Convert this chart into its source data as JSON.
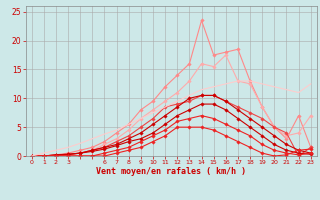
{
  "background_color": "#cde8e8",
  "grid_color": "#aaaaaa",
  "xlabel": "Vent moyen/en rafales ( km/h )",
  "xlim": [
    -0.5,
    23.5
  ],
  "ylim": [
    0,
    26
  ],
  "xtick_labels": [
    "0",
    "1",
    "2",
    "3",
    "",
    "",
    "6",
    "7",
    "8",
    "9",
    "10",
    "11",
    "12",
    "13",
    "14",
    "15",
    "16",
    "17",
    "18",
    "19",
    "20",
    "21",
    "22",
    "23"
  ],
  "yticks": [
    0,
    5,
    10,
    15,
    20,
    25
  ],
  "x": [
    0,
    1,
    2,
    3,
    4,
    5,
    6,
    7,
    8,
    9,
    10,
    11,
    12,
    13,
    14,
    15,
    16,
    17,
    18,
    19,
    20,
    21,
    22,
    23
  ],
  "lines": [
    {
      "color": "#ff8888",
      "lw": 0.8,
      "marker": "D",
      "ms": 1.8,
      "y": [
        0,
        0,
        0.2,
        0.5,
        1.0,
        1.5,
        2.5,
        4.0,
        5.5,
        8.0,
        9.5,
        12.0,
        14.0,
        16.0,
        23.5,
        17.5,
        18.0,
        18.5,
        13.0,
        8.5,
        5.0,
        3.0,
        7.0,
        1.5
      ]
    },
    {
      "color": "#ffaaaa",
      "lw": 0.8,
      "marker": "D",
      "ms": 1.8,
      "y": [
        0,
        0,
        0,
        0.3,
        0.5,
        1.0,
        2.0,
        3.0,
        4.5,
        6.5,
        8.0,
        9.5,
        11.0,
        13.0,
        16.0,
        15.5,
        17.5,
        13.0,
        12.5,
        8.5,
        5.0,
        3.5,
        4.0,
        7.0
      ]
    },
    {
      "color": "#ee4444",
      "lw": 0.8,
      "marker": "D",
      "ms": 1.8,
      "y": [
        0,
        0,
        0,
        0.2,
        0.5,
        1.0,
        1.5,
        2.5,
        3.5,
        5.0,
        6.5,
        8.5,
        9.0,
        9.5,
        10.5,
        10.5,
        9.5,
        8.5,
        7.5,
        6.5,
        5.0,
        4.0,
        0,
        1.5
      ]
    },
    {
      "color": "#cc0000",
      "lw": 0.8,
      "marker": "D",
      "ms": 1.8,
      "y": [
        0,
        0,
        0.2,
        0.3,
        0.5,
        1.0,
        1.5,
        2.0,
        3.0,
        4.0,
        5.5,
        7.0,
        8.5,
        10.0,
        10.5,
        10.5,
        9.5,
        8.0,
        6.5,
        5.0,
        3.5,
        2.0,
        1.0,
        0.5
      ]
    },
    {
      "color": "#cc0000",
      "lw": 0.8,
      "marker": "D",
      "ms": 1.8,
      "y": [
        0,
        0,
        0.2,
        0.3,
        0.5,
        0.8,
        1.2,
        1.8,
        2.5,
        3.0,
        4.0,
        5.5,
        7.0,
        8.0,
        9.0,
        9.0,
        8.0,
        6.5,
        5.0,
        3.5,
        2.0,
        1.0,
        0.5,
        0.3
      ]
    },
    {
      "color": "#ee2222",
      "lw": 0.8,
      "marker": "D",
      "ms": 1.8,
      "y": [
        0,
        0,
        0,
        0,
        0,
        0,
        0.5,
        1.0,
        1.5,
        2.5,
        3.5,
        4.5,
        6.0,
        6.5,
        7.0,
        6.5,
        5.5,
        4.5,
        3.5,
        2.0,
        1.0,
        0.5,
        0.2,
        0.5
      ]
    },
    {
      "color": "#ee2222",
      "lw": 0.8,
      "marker": "D",
      "ms": 1.8,
      "y": [
        0,
        0,
        0,
        0,
        0,
        0,
        0,
        0.5,
        1.0,
        1.5,
        2.5,
        3.5,
        5.0,
        5.0,
        5.0,
        4.5,
        3.5,
        2.5,
        1.5,
        0.5,
        0,
        0.2,
        1.0,
        1.2
      ]
    },
    {
      "color": "#ffcccc",
      "lw": 0.8,
      "marker": null,
      "ms": 0,
      "y": [
        0,
        0.5,
        1.0,
        1.5,
        2.2,
        3.0,
        3.8,
        4.5,
        5.5,
        6.5,
        7.5,
        8.5,
        9.5,
        10.5,
        11.5,
        12.0,
        12.5,
        13.0,
        13.0,
        12.5,
        12.0,
        11.5,
        11.0,
        12.5
      ]
    }
  ]
}
